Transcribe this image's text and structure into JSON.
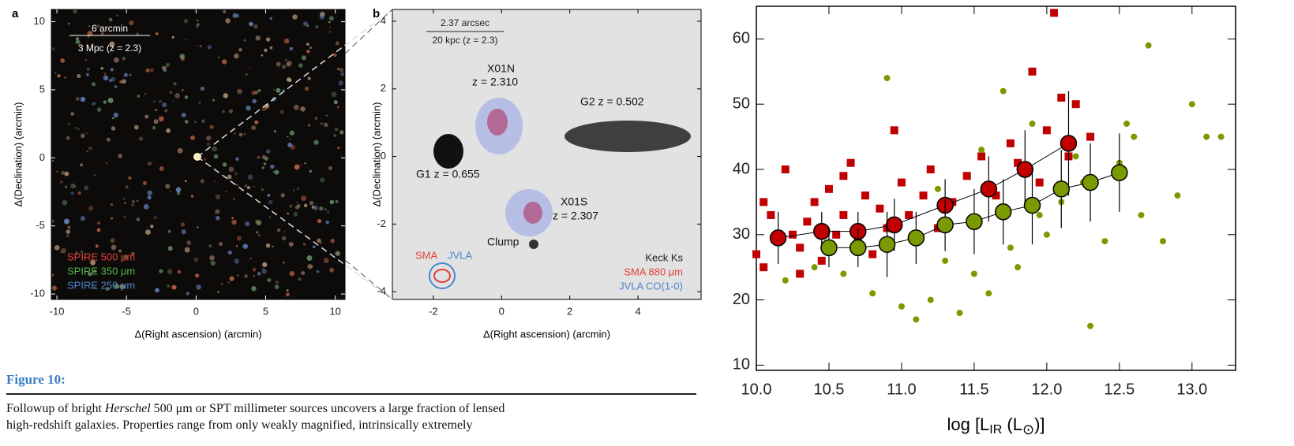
{
  "figure_label": "Figure 10:",
  "caption": {
    "text_before": "Followup of bright ",
    "emphasis": "Herschel",
    "text_after": " 500 μm or SPT millimeter sources uncovers a large fraction of lensed",
    "line2": "high-redshift galaxies. Properties range from only weakly magnified, intrinsically extremely"
  },
  "chart_data": [
    {
      "type": "image",
      "panel_label": "a",
      "xlabel": "Δ(Right ascension) (arcmin)",
      "ylabel": "Δ(Declination) (arcmin)",
      "xlim": [
        -10.4,
        10.7
      ],
      "ylim": [
        -10.4,
        10.9
      ],
      "xticks": [
        -10,
        -5,
        0,
        5,
        10
      ],
      "yticks": [
        10,
        5,
        0,
        -5,
        -10
      ],
      "scale_bar": [
        "6 arcmin",
        "3 Mpc (z = 2.3)"
      ],
      "legend": [
        {
          "name": "SPIRE 500 μm",
          "color": "#e8403c"
        },
        {
          "name": "SPIRE 350 μm",
          "color": "#4fb848"
        },
        {
          "name": "SPIRE 250 μm",
          "color": "#4a86d0"
        }
      ]
    },
    {
      "type": "image",
      "panel_label": "b",
      "xlabel": "Δ(Right ascension) (arcmin)",
      "ylabel": "Δ(Declination) (arcmin)",
      "xlim": [
        -3.2,
        5.85
      ],
      "ylim": [
        -4.23,
        4.35
      ],
      "xticks": [
        -2,
        0,
        2,
        4
      ],
      "yticks": [
        4,
        2,
        0,
        -2,
        -4
      ],
      "scale_bar": [
        "2.37 arcsec",
        "20 kpc (z = 2.3)"
      ],
      "annotations": [
        "X01N",
        "z = 2.310",
        "G2 z = 0.502",
        "G1 z = 0.655",
        "X01S",
        "z = 2.307",
        "Clump"
      ],
      "legend": [
        {
          "name": "SMA",
          "color": "#e0403c"
        },
        {
          "name": "JVLA",
          "color": "#4a86d0"
        },
        {
          "name": "Keck Ks",
          "color": "#222222"
        },
        {
          "name": "SMA 880 μm",
          "color": "#e0403c"
        },
        {
          "name": "JVLA CO(1-0)",
          "color": "#4a86d0"
        }
      ]
    },
    {
      "type": "scatter",
      "xlabel_parts": [
        "log [L",
        "IR",
        " (L",
        "⊙",
        ")]"
      ],
      "xlim": [
        10.0,
        13.3
      ],
      "ylim": [
        9.2,
        65
      ],
      "xticks": [
        {
          "value": 10,
          "label": "10.0"
        },
        {
          "value": 10.5,
          "label": "10.5"
        },
        {
          "value": 11,
          "label": "11.0"
        },
        {
          "value": 11.5,
          "label": "11.5"
        },
        {
          "value": 12,
          "label": "12.0"
        },
        {
          "value": 12.5,
          "label": "12.5"
        },
        {
          "value": 13,
          "label": "13.0"
        }
      ],
      "yticks": [
        10,
        20,
        30,
        40,
        50,
        60
      ],
      "series": [
        {
          "marker": "square",
          "color": "#c00000",
          "x": [
            10.0,
            10.05,
            10.1,
            10.2,
            10.25,
            10.3,
            10.35,
            10.4,
            10.45,
            10.5,
            10.55,
            10.6,
            10.65,
            10.7,
            10.75,
            10.8,
            10.85,
            10.9,
            10.95,
            11.0,
            11.05,
            11.1,
            11.15,
            11.2,
            11.25,
            11.35,
            11.45,
            11.55,
            11.65,
            11.75,
            11.8,
            11.9,
            11.95,
            12.0,
            12.05,
            12.1,
            12.15,
            12.2,
            12.3,
            10.05,
            10.3,
            10.6
          ],
          "values": [
            27,
            35,
            33,
            40,
            30,
            28,
            32,
            35,
            26,
            37,
            30,
            33,
            41,
            29,
            36,
            27,
            34,
            31,
            46,
            38,
            33,
            29,
            36,
            40,
            31,
            35,
            39,
            42,
            36,
            44,
            41,
            55,
            38,
            46,
            64,
            51,
            42,
            50,
            45,
            25,
            24,
            39
          ]
        },
        {
          "marker": "circle",
          "color": "#7a9a01",
          "x": [
            10.2,
            10.4,
            10.6,
            10.8,
            10.9,
            11.0,
            11.1,
            11.2,
            11.3,
            11.4,
            11.5,
            11.6,
            11.7,
            11.8,
            11.9,
            12.0,
            12.1,
            12.2,
            12.3,
            12.4,
            12.5,
            12.55,
            12.6,
            12.7,
            12.8,
            12.9,
            13.0,
            13.1,
            13.2,
            11.25,
            11.55,
            11.95,
            12.25,
            12.65,
            11.75
          ],
          "values": [
            23,
            25,
            24,
            21,
            54,
            19,
            17,
            20,
            26,
            18,
            24,
            21,
            52,
            25,
            47,
            30,
            35,
            42,
            16,
            29,
            41,
            47,
            45,
            59,
            29,
            36,
            50,
            45,
            45,
            37,
            43,
            33,
            38,
            33,
            28
          ]
        },
        {
          "marker": "binned",
          "color": "#c00000",
          "x": [
            10.15,
            10.45,
            10.7,
            10.95,
            11.3,
            11.6,
            11.85,
            12.15
          ],
          "values": [
            29.5,
            30.5,
            30.5,
            31.5,
            34.5,
            37,
            40,
            44
          ],
          "errors": [
            4,
            3,
            3,
            4,
            4,
            5,
            6,
            8
          ]
        },
        {
          "marker": "binned",
          "color": "#7a9a01",
          "x": [
            10.5,
            10.7,
            10.9,
            11.1,
            11.3,
            11.5,
            11.7,
            11.9,
            12.1,
            12.3,
            12.5
          ],
          "values": [
            28,
            28,
            28.5,
            29.5,
            31.5,
            32,
            33.5,
            34.5,
            37,
            38,
            39.5
          ],
          "errors": [
            3,
            3,
            5,
            4,
            4,
            5,
            5,
            6,
            6,
            6,
            6
          ]
        }
      ]
    }
  ]
}
